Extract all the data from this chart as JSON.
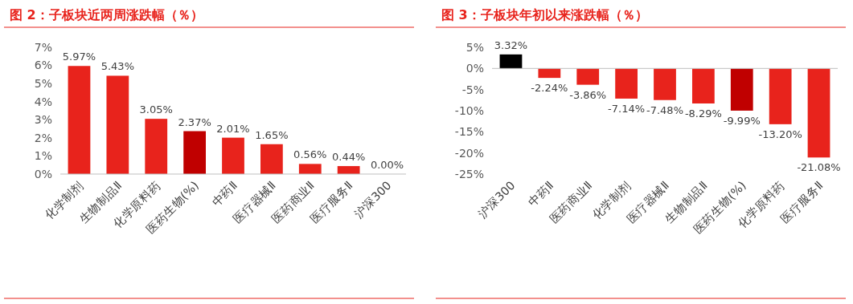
{
  "chart_data": [
    {
      "type": "bar",
      "title": "图 2：子板块近两周涨跌幅（％）",
      "categories": [
        "化学制剂",
        "生物制品Ⅱ",
        "化学原料药",
        "医药生物(%)",
        "中药Ⅱ",
        "医疗器械Ⅱ",
        "医药商业Ⅱ",
        "医疗服务Ⅱ",
        "沪深300"
      ],
      "values": [
        5.97,
        5.43,
        3.05,
        2.37,
        2.01,
        1.65,
        0.56,
        0.44,
        0.0
      ],
      "colors": [
        "#e8231c",
        "#e8231c",
        "#e8231c",
        "#c00000",
        "#e8231c",
        "#e8231c",
        "#e8231c",
        "#e8231c",
        "#e8231c"
      ],
      "value_labels": [
        "5.97%",
        "5.43%",
        "3.05%",
        "2.37%",
        "2.01%",
        "1.65%",
        "0.56%",
        "0.44%",
        "0.00%"
      ],
      "ylim": [
        0,
        7
      ],
      "yticks": [
        {
          "value": 0,
          "label": "0%"
        },
        {
          "value": 1,
          "label": "1%"
        },
        {
          "value": 2,
          "label": "2%"
        },
        {
          "value": 3,
          "label": "3%"
        },
        {
          "value": 4,
          "label": "4%"
        },
        {
          "value": 5,
          "label": "5%"
        },
        {
          "value": 6,
          "label": "6%"
        },
        {
          "value": 7,
          "label": "7%"
        }
      ]
    },
    {
      "type": "bar",
      "title": "图 3：子板块年初以来涨跌幅（％）",
      "categories": [
        "沪深300",
        "中药Ⅱ",
        "医药商业Ⅱ",
        "化学制剂",
        "医疗器械Ⅱ",
        "生物制品Ⅱ",
        "医药生物(%)",
        "化学原料药",
        "医疗服务Ⅱ"
      ],
      "values": [
        3.32,
        -2.24,
        -3.86,
        -7.14,
        -7.48,
        -8.29,
        -9.99,
        -13.2,
        -21.08
      ],
      "colors": [
        "#000000",
        "#e8231c",
        "#e8231c",
        "#e8231c",
        "#e8231c",
        "#e8231c",
        "#c00000",
        "#e8231c",
        "#e8231c"
      ],
      "value_labels": [
        "3.32%",
        "-2.24%",
        "-3.86%",
        "-7.14%",
        "-7.48%",
        "-8.29%",
        "-9.99%",
        "-13.20%",
        "-21.08%"
      ],
      "ylim": [
        -25,
        5
      ],
      "yticks": [
        {
          "value": -25,
          "label": "-25%"
        },
        {
          "value": -20,
          "label": "-20%"
        },
        {
          "value": -15,
          "label": "-15%"
        },
        {
          "value": -10,
          "label": "-10%"
        },
        {
          "value": -5,
          "label": "-5%"
        },
        {
          "value": 0,
          "label": "0%"
        },
        {
          "value": 5,
          "label": "5%"
        }
      ]
    }
  ]
}
